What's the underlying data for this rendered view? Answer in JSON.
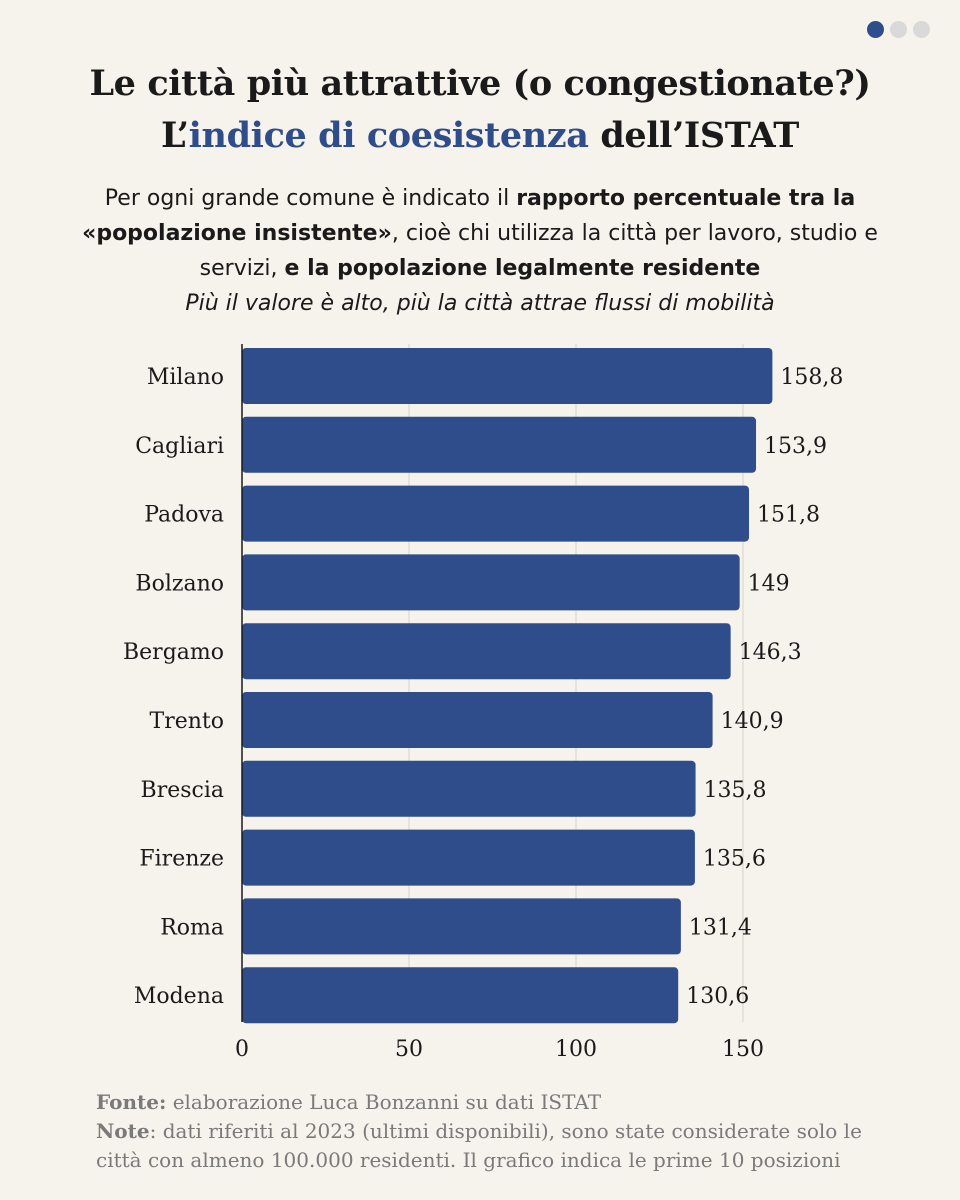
{
  "title": {
    "line1": "Le città più attrattive (o congestionate?)",
    "line2_prefix": "L’",
    "line2_accent": "indice di coesistenza",
    "line2_suffix": " dell’ISTAT"
  },
  "subtitle": {
    "p1": "Per ogni grande comune è indicato il ",
    "b1": "rapporto percentuale tra la «popolazione insistente»",
    "p2": ", cioè chi utilizza la città per lavoro, studio e servizi, ",
    "b2": "e la popolazione legalmente residente",
    "italic": "Più il valore è alto, più la città attrae flussi di mobilità"
  },
  "chart_data": {
    "type": "bar",
    "orientation": "horizontal",
    "categories": [
      "Milano",
      "Cagliari",
      "Padova",
      "Bolzano",
      "Bergamo",
      "Trento",
      "Brescia",
      "Firenze",
      "Roma",
      "Modena"
    ],
    "values": [
      158.8,
      153.9,
      151.8,
      149,
      146.3,
      140.9,
      135.8,
      135.6,
      131.4,
      130.6
    ],
    "value_labels": [
      "158,8",
      "153,9",
      "151,8",
      "149",
      "146,3",
      "140,9",
      "135,8",
      "135,6",
      "131,4",
      "130,6"
    ],
    "xticks": [
      0,
      50,
      100,
      150
    ],
    "xlim": [
      0,
      160
    ],
    "grid": "vertical",
    "bar_color": "#2f4d8a"
  },
  "footer": {
    "source_label": "Fonte:",
    "source_text": " elaborazione Luca Bonzanni su dati ISTAT",
    "note_label": "Note",
    "note_text": ": dati riferiti al 2023 (ultimi disponibili), sono state considerate solo le città con almeno 100.000 residenti. Il grafico indica le prime 10 posizioni"
  },
  "pagination": {
    "pages": 3,
    "active": 1
  },
  "colors": {
    "accent": "#2f4d8a",
    "background": "#f6f2ec",
    "grid": "#d6d2cc",
    "footer_text": "#7a7a7a",
    "dot_inactive": "#d9d9d9"
  }
}
